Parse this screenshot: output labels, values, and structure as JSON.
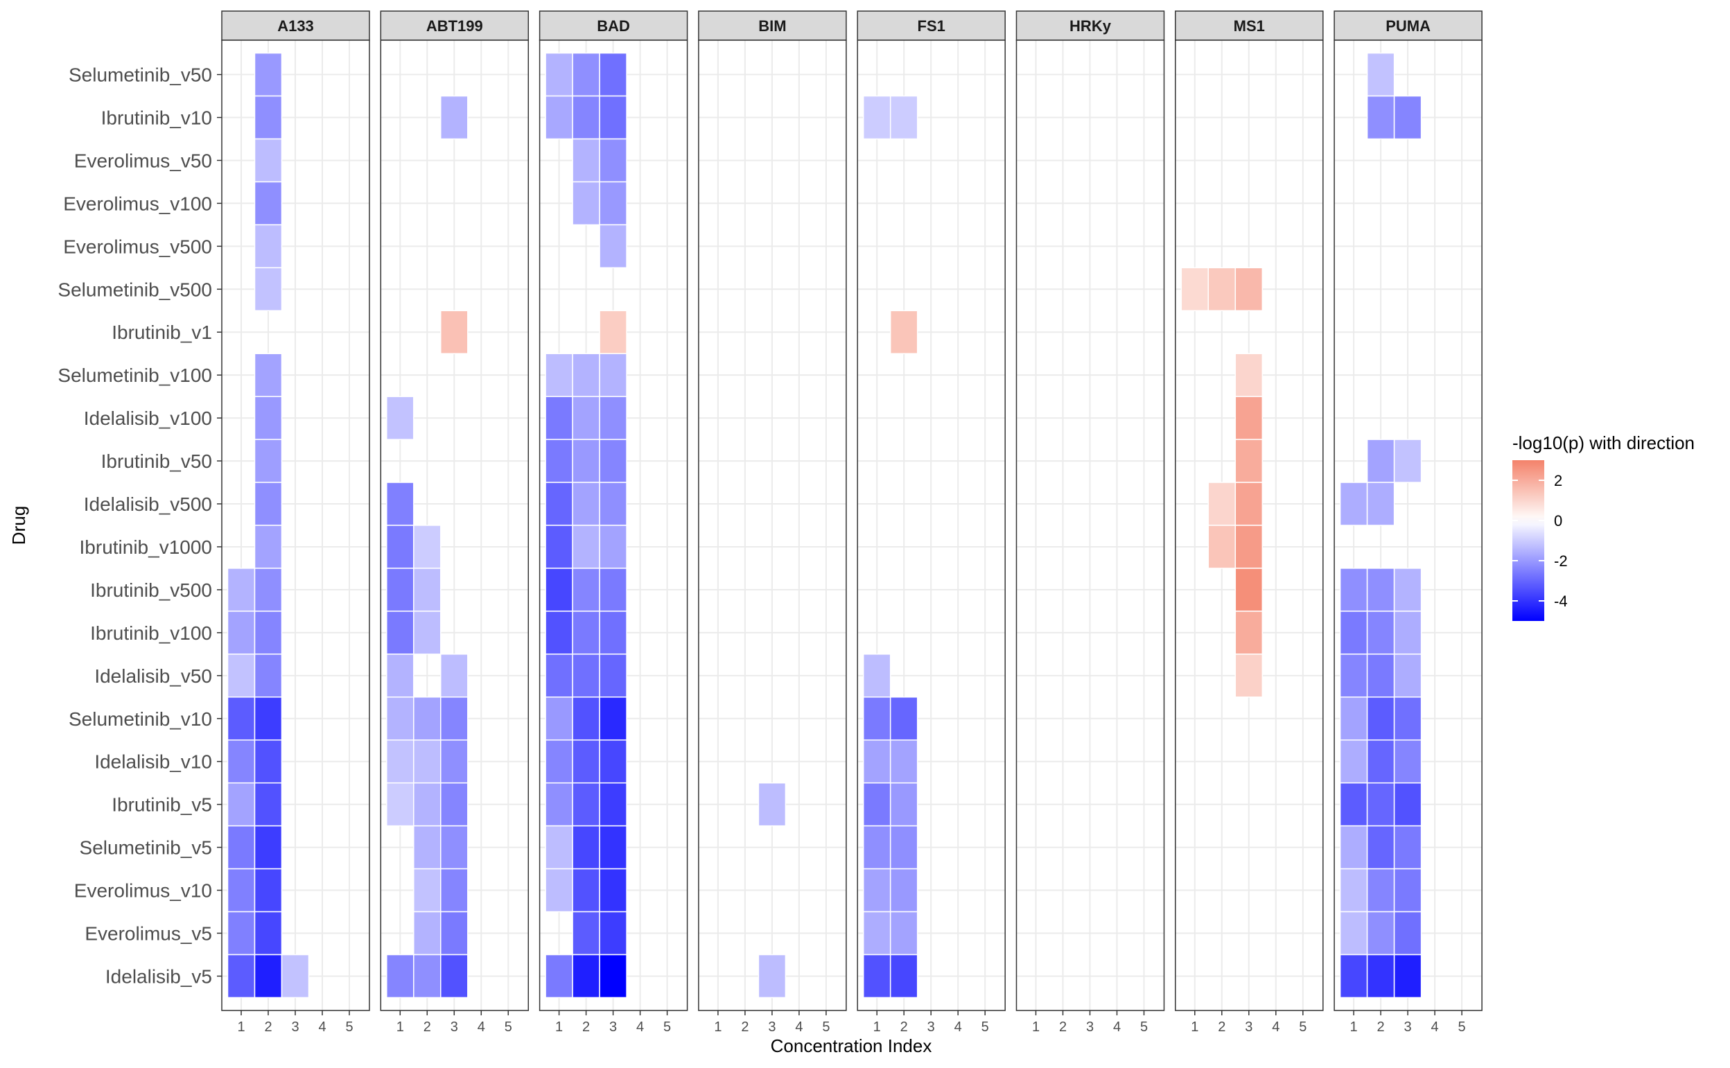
{
  "chart_data": {
    "type": "heatmap",
    "xlabel": "Concentration Index",
    "ylabel": "Drug",
    "legend_title": "-log10(p) with direction",
    "legend_ticks": [
      2,
      0,
      -2,
      -4
    ],
    "legend_range": [
      -5,
      3
    ],
    "color_low": "#0000ff",
    "color_mid": "#ffffff",
    "color_high": "#f4826a",
    "x_ticks": [
      "1",
      "2",
      "3",
      "4",
      "5"
    ],
    "drugs": [
      "Selumetinib_v50",
      "Ibrutinib_v10",
      "Everolimus_v50",
      "Everolimus_v100",
      "Everolimus_v500",
      "Selumetinib_v500",
      "Ibrutinib_v1",
      "Selumetinib_v100",
      "Idelalisib_v100",
      "Ibrutinib_v50",
      "Idelalisib_v500",
      "Ibrutinib_v1000",
      "Ibrutinib_v500",
      "Ibrutinib_v100",
      "Idelalisib_v50",
      "Selumetinib_v10",
      "Idelalisib_v10",
      "Ibrutinib_v5",
      "Selumetinib_v5",
      "Everolimus_v10",
      "Everolimus_v5",
      "Idelalisib_v5"
    ],
    "panels": [
      {
        "name": "A133",
        "cells": [
          [
            0,
            2,
            -2.0
          ],
          [
            1,
            2,
            -2.2
          ],
          [
            2,
            2,
            -1.3
          ],
          [
            3,
            2,
            -2.2
          ],
          [
            4,
            2,
            -1.3
          ],
          [
            5,
            2,
            -1.2
          ],
          [
            7,
            2,
            -1.8
          ],
          [
            8,
            2,
            -2.0
          ],
          [
            9,
            2,
            -1.9
          ],
          [
            10,
            2,
            -2.2
          ],
          [
            11,
            2,
            -1.8
          ],
          [
            12,
            1,
            -1.5
          ],
          [
            12,
            2,
            -2.2
          ],
          [
            13,
            1,
            -1.8
          ],
          [
            13,
            2,
            -2.4
          ],
          [
            14,
            1,
            -1.2
          ],
          [
            14,
            2,
            -2.4
          ],
          [
            15,
            1,
            -3.2
          ],
          [
            15,
            2,
            -3.8
          ],
          [
            16,
            1,
            -2.4
          ],
          [
            16,
            2,
            -3.4
          ],
          [
            17,
            1,
            -1.8
          ],
          [
            17,
            2,
            -3.4
          ],
          [
            18,
            1,
            -2.6
          ],
          [
            18,
            2,
            -3.8
          ],
          [
            19,
            1,
            -2.5
          ],
          [
            19,
            2,
            -3.6
          ],
          [
            20,
            1,
            -2.5
          ],
          [
            20,
            2,
            -3.6
          ],
          [
            21,
            1,
            -3.2
          ],
          [
            21,
            2,
            -4.4
          ],
          [
            21,
            3,
            -1.2
          ]
        ]
      },
      {
        "name": "ABT199",
        "cells": [
          [
            1,
            3,
            -1.5
          ],
          [
            6,
            3,
            1.5
          ],
          [
            8,
            1,
            -1.2
          ],
          [
            10,
            1,
            -2.5
          ],
          [
            11,
            1,
            -2.6
          ],
          [
            11,
            2,
            -1.0
          ],
          [
            12,
            1,
            -2.6
          ],
          [
            12,
            2,
            -1.3
          ],
          [
            13,
            1,
            -2.6
          ],
          [
            13,
            2,
            -1.3
          ],
          [
            14,
            1,
            -1.5
          ],
          [
            14,
            3,
            -1.3
          ],
          [
            15,
            1,
            -1.5
          ],
          [
            15,
            2,
            -1.8
          ],
          [
            15,
            3,
            -2.4
          ],
          [
            16,
            1,
            -1.2
          ],
          [
            16,
            2,
            -1.3
          ],
          [
            16,
            3,
            -2.2
          ],
          [
            17,
            1,
            -1.0
          ],
          [
            17,
            2,
            -1.5
          ],
          [
            17,
            3,
            -2.4
          ],
          [
            18,
            2,
            -1.5
          ],
          [
            18,
            3,
            -2.2
          ],
          [
            19,
            2,
            -1.2
          ],
          [
            19,
            3,
            -2.4
          ],
          [
            20,
            2,
            -1.5
          ],
          [
            20,
            3,
            -2.6
          ],
          [
            21,
            1,
            -2.4
          ],
          [
            21,
            2,
            -2.2
          ],
          [
            21,
            3,
            -3.4
          ]
        ]
      },
      {
        "name": "BAD",
        "cells": [
          [
            0,
            1,
            -1.5
          ],
          [
            0,
            2,
            -2.2
          ],
          [
            0,
            3,
            -2.8
          ],
          [
            1,
            1,
            -1.7
          ],
          [
            1,
            2,
            -2.4
          ],
          [
            1,
            3,
            -2.8
          ],
          [
            2,
            2,
            -1.5
          ],
          [
            2,
            3,
            -2.2
          ],
          [
            3,
            2,
            -1.5
          ],
          [
            3,
            3,
            -2.0
          ],
          [
            4,
            3,
            -1.5
          ],
          [
            6,
            3,
            1.2
          ],
          [
            7,
            1,
            -1.3
          ],
          [
            7,
            2,
            -1.5
          ],
          [
            7,
            3,
            -1.5
          ],
          [
            8,
            1,
            -2.6
          ],
          [
            8,
            2,
            -1.8
          ],
          [
            8,
            3,
            -2.2
          ],
          [
            9,
            1,
            -2.6
          ],
          [
            9,
            2,
            -2.0
          ],
          [
            9,
            3,
            -2.4
          ],
          [
            10,
            1,
            -3.0
          ],
          [
            10,
            2,
            -1.8
          ],
          [
            10,
            3,
            -2.2
          ],
          [
            11,
            1,
            -3.2
          ],
          [
            11,
            2,
            -1.5
          ],
          [
            11,
            3,
            -1.8
          ],
          [
            12,
            1,
            -3.6
          ],
          [
            12,
            2,
            -2.4
          ],
          [
            12,
            3,
            -2.6
          ],
          [
            13,
            1,
            -3.4
          ],
          [
            13,
            2,
            -2.6
          ],
          [
            13,
            3,
            -2.8
          ],
          [
            14,
            1,
            -2.8
          ],
          [
            14,
            2,
            -2.8
          ],
          [
            14,
            3,
            -3.0
          ],
          [
            15,
            1,
            -2.0
          ],
          [
            15,
            2,
            -3.4
          ],
          [
            15,
            3,
            -4.2
          ],
          [
            16,
            1,
            -2.4
          ],
          [
            16,
            2,
            -3.2
          ],
          [
            16,
            3,
            -3.6
          ],
          [
            17,
            1,
            -2.2
          ],
          [
            17,
            2,
            -3.2
          ],
          [
            17,
            3,
            -3.8
          ],
          [
            18,
            1,
            -1.3
          ],
          [
            18,
            2,
            -3.6
          ],
          [
            18,
            3,
            -4.0
          ],
          [
            19,
            1,
            -1.3
          ],
          [
            19,
            2,
            -3.4
          ],
          [
            19,
            3,
            -4.0
          ],
          [
            20,
            2,
            -3.2
          ],
          [
            20,
            3,
            -3.8
          ],
          [
            21,
            1,
            -2.6
          ],
          [
            21,
            2,
            -4.4
          ],
          [
            21,
            3,
            -5.0
          ]
        ]
      },
      {
        "name": "BIM",
        "cells": [
          [
            17,
            3,
            -1.3
          ],
          [
            21,
            3,
            -1.3
          ]
        ]
      },
      {
        "name": "FS1",
        "cells": [
          [
            1,
            1,
            -1.0
          ],
          [
            1,
            2,
            -1.0
          ],
          [
            6,
            2,
            1.4
          ],
          [
            14,
            1,
            -1.3
          ],
          [
            15,
            1,
            -2.6
          ],
          [
            15,
            2,
            -3.0
          ],
          [
            16,
            1,
            -1.8
          ],
          [
            16,
            2,
            -1.8
          ],
          [
            17,
            1,
            -2.6
          ],
          [
            17,
            2,
            -2.0
          ],
          [
            18,
            1,
            -2.2
          ],
          [
            18,
            2,
            -2.2
          ],
          [
            19,
            1,
            -1.8
          ],
          [
            19,
            2,
            -2.0
          ],
          [
            20,
            1,
            -1.6
          ],
          [
            20,
            2,
            -1.8
          ],
          [
            21,
            1,
            -3.4
          ],
          [
            21,
            2,
            -3.6
          ]
        ]
      },
      {
        "name": "HRKy",
        "cells": []
      },
      {
        "name": "MS1",
        "cells": [
          [
            5,
            1,
            0.9
          ],
          [
            5,
            2,
            1.3
          ],
          [
            5,
            3,
            1.7
          ],
          [
            7,
            3,
            1.0
          ],
          [
            8,
            3,
            2.2
          ],
          [
            9,
            3,
            2.0
          ],
          [
            10,
            2,
            1.0
          ],
          [
            10,
            3,
            2.2
          ],
          [
            11,
            2,
            1.4
          ],
          [
            11,
            3,
            2.4
          ],
          [
            12,
            3,
            2.7
          ],
          [
            13,
            3,
            2.0
          ],
          [
            14,
            3,
            1.1
          ]
        ]
      },
      {
        "name": "PUMA",
        "cells": [
          [
            0,
            2,
            -1.2
          ],
          [
            1,
            2,
            -2.2
          ],
          [
            1,
            3,
            -2.4
          ],
          [
            9,
            2,
            -1.8
          ],
          [
            9,
            3,
            -1.2
          ],
          [
            10,
            1,
            -1.6
          ],
          [
            10,
            2,
            -1.6
          ],
          [
            12,
            1,
            -2.2
          ],
          [
            12,
            2,
            -2.2
          ],
          [
            12,
            3,
            -1.5
          ],
          [
            13,
            1,
            -2.6
          ],
          [
            13,
            2,
            -2.4
          ],
          [
            13,
            3,
            -1.6
          ],
          [
            14,
            1,
            -2.4
          ],
          [
            14,
            2,
            -2.6
          ],
          [
            14,
            3,
            -1.6
          ],
          [
            15,
            1,
            -1.8
          ],
          [
            15,
            2,
            -3.2
          ],
          [
            15,
            3,
            -2.8
          ],
          [
            16,
            1,
            -1.6
          ],
          [
            16,
            2,
            -3.0
          ],
          [
            16,
            3,
            -2.4
          ],
          [
            17,
            1,
            -3.2
          ],
          [
            17,
            2,
            -3.0
          ],
          [
            17,
            3,
            -3.4
          ],
          [
            18,
            1,
            -1.6
          ],
          [
            18,
            2,
            -3.0
          ],
          [
            18,
            3,
            -2.6
          ],
          [
            19,
            1,
            -1.3
          ],
          [
            19,
            2,
            -2.4
          ],
          [
            19,
            3,
            -2.6
          ],
          [
            20,
            1,
            -1.3
          ],
          [
            20,
            2,
            -2.2
          ],
          [
            20,
            3,
            -2.8
          ],
          [
            21,
            1,
            -3.6
          ],
          [
            21,
            2,
            -4.0
          ],
          [
            21,
            3,
            -4.4
          ]
        ]
      }
    ]
  }
}
